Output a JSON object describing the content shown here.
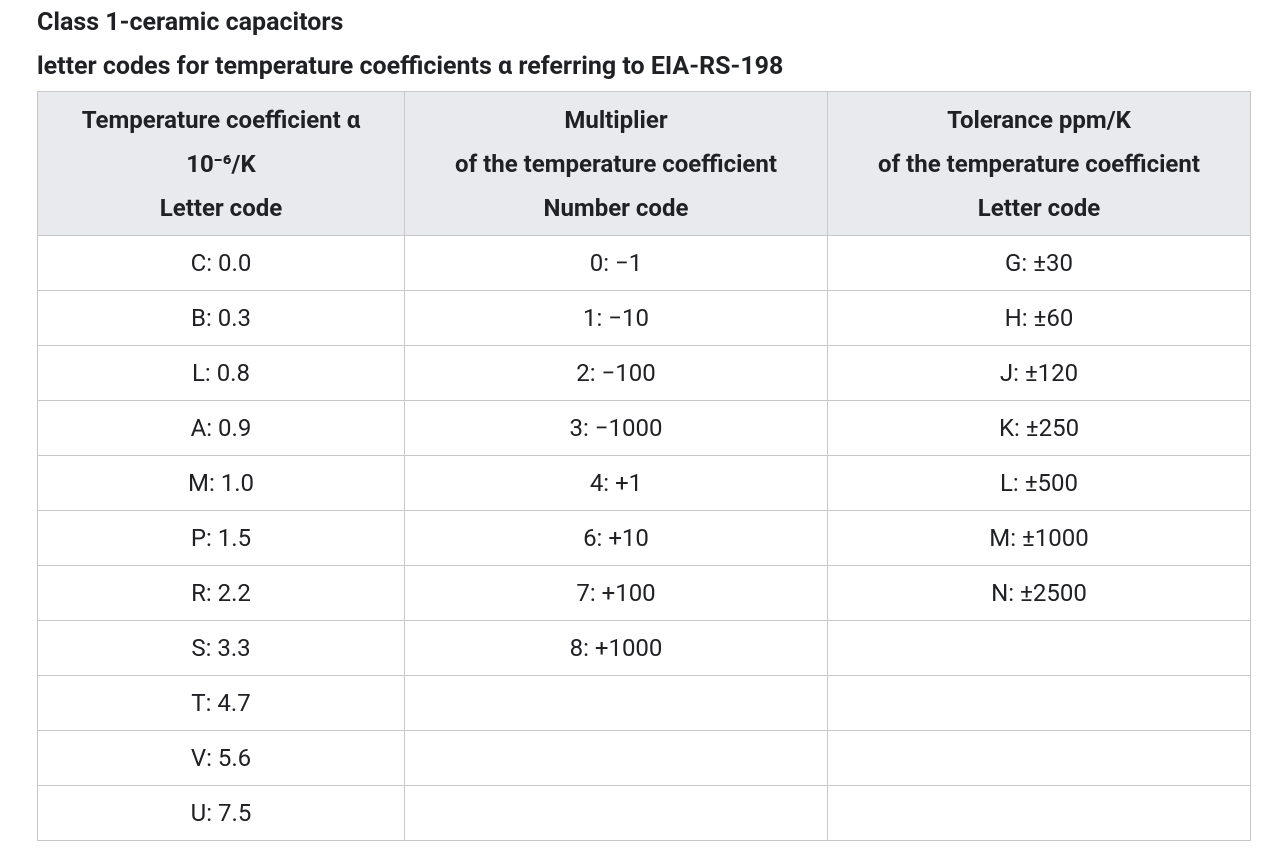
{
  "header": {
    "title": "Class 1-ceramic capacitors",
    "subtitle": "letter codes for temperature coefficients α referring to EIA-RS-198"
  },
  "table": {
    "columns": [
      {
        "header": [
          "Temperature coefficient α",
          "10⁻⁶/K",
          "Letter code"
        ],
        "cells": [
          "C: 0.0",
          "B: 0.3",
          "L: 0.8",
          "A: 0.9",
          "M: 1.0",
          "P: 1.5",
          "R: 2.2",
          "S: 3.3",
          "T: 4.7",
          "V: 5.6",
          "U: 7.5"
        ]
      },
      {
        "header": [
          "Multiplier",
          "of the temperature coefficient",
          "Number code"
        ],
        "cells": [
          "0: −1",
          "1: −10",
          "2: −100",
          "3: −1000",
          "4: +1",
          "6: +10",
          "7: +100",
          "8: +1000"
        ]
      },
      {
        "header": [
          "Tolerance ppm/K",
          "of the temperature coefficient",
          "Letter code"
        ],
        "cells": [
          "G: ±30",
          "H: ±60",
          "J: ±120",
          "K: ±250",
          "L: ±500",
          "M: ±1000",
          "N: ±2500"
        ]
      }
    ]
  }
}
